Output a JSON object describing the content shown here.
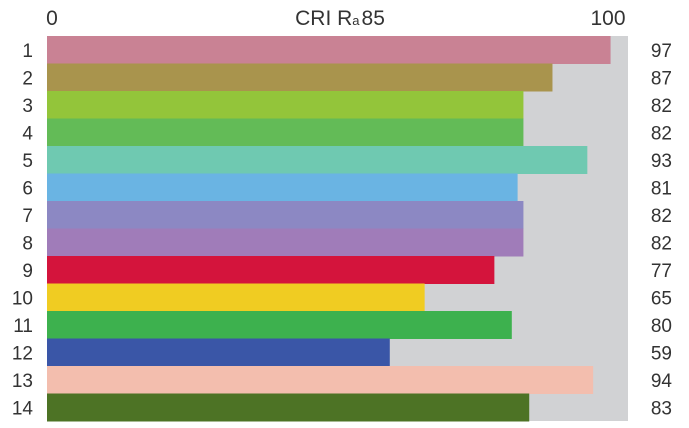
{
  "chart_data": {
    "type": "bar",
    "orientation": "horizontal",
    "title": "CRI Ra 85",
    "title_parts": {
      "main": "CRI R",
      "subscript": "a",
      "value": "85"
    },
    "xlim": [
      0,
      100
    ],
    "x_ticks": [
      "0",
      "100"
    ],
    "categories": [
      "1",
      "2",
      "3",
      "4",
      "5",
      "6",
      "7",
      "8",
      "9",
      "10",
      "11",
      "12",
      "13",
      "14"
    ],
    "values": [
      97,
      87,
      82,
      82,
      93,
      81,
      82,
      82,
      77,
      65,
      80,
      59,
      94,
      83
    ],
    "value_labels": [
      "97",
      "87",
      "82",
      "82",
      "93",
      "81",
      "82",
      "82",
      "77",
      "65",
      "80",
      "59",
      "94",
      "83"
    ],
    "colors": [
      "#c98294",
      "#a9944d",
      "#93c53a",
      "#63bb57",
      "#6fc9b1",
      "#6ab4e3",
      "#8c88c3",
      "#a07cb9",
      "#d4143c",
      "#f0cc22",
      "#3db14e",
      "#3a56a7",
      "#f3beae",
      "#4d7325"
    ],
    "background_color": "#d1d2d4",
    "grid": false
  }
}
